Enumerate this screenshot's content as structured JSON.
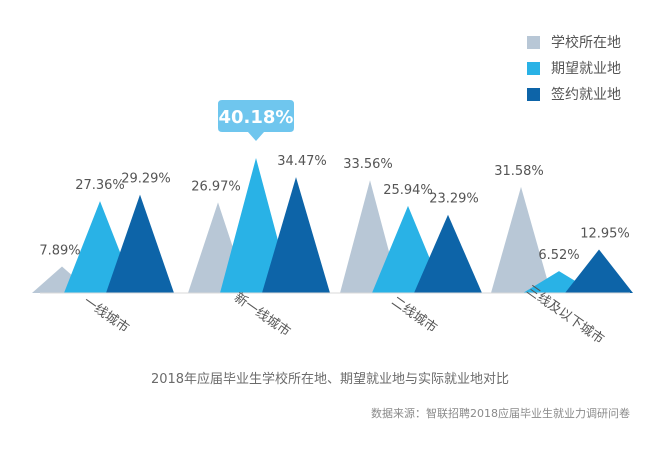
{
  "chart_data": {
    "type": "area",
    "categories": [
      "一线城市",
      "新一线城市",
      "二线城市",
      "三线及以下城市"
    ],
    "series": [
      {
        "name": "学校所在地",
        "color": "#b8c7d6",
        "values": [
          7.89,
          26.97,
          33.56,
          31.58
        ]
      },
      {
        "name": "期望就业地",
        "color": "#29b2e6",
        "values": [
          27.36,
          40.18,
          25.94,
          6.52
        ]
      },
      {
        "name": "签约就业地",
        "color": "#0d64a8",
        "values": [
          29.29,
          34.47,
          23.29,
          12.95
        ]
      }
    ],
    "value_labels": [
      [
        "7.89%",
        "27.36%",
        "29.29%"
      ],
      [
        "26.97%",
        "40.18%",
        "34.47%"
      ],
      [
        "33.56%",
        "25.94%",
        "23.29%"
      ],
      [
        "31.58%",
        "6.52%",
        "12.95%"
      ]
    ],
    "highlight": {
      "category_index": 1,
      "series_index": 1,
      "label": "40.18%",
      "color": "#6fc6ee"
    },
    "ylim": [
      0,
      45
    ],
    "grid": false,
    "legend_position": "top-right",
    "title": "2018年应届毕业生学校所在地、期望就业地与实际就业地对比",
    "source": "数据来源：智联招聘2018应届毕业生就业力调研问卷"
  }
}
